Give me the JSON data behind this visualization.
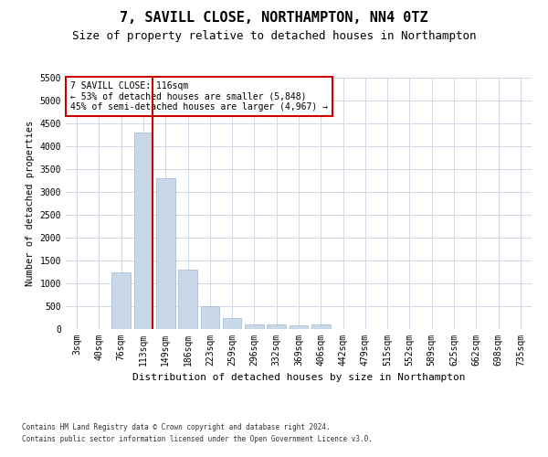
{
  "title1": "7, SAVILL CLOSE, NORTHAMPTON, NN4 0TZ",
  "title2": "Size of property relative to detached houses in Northampton",
  "xlabel": "Distribution of detached houses by size in Northampton",
  "ylabel": "Number of detached properties",
  "footnote1": "Contains HM Land Registry data © Crown copyright and database right 2024.",
  "footnote2": "Contains public sector information licensed under the Open Government Licence v3.0.",
  "categories": [
    "3sqm",
    "40sqm",
    "76sqm",
    "113sqm",
    "149sqm",
    "186sqm",
    "223sqm",
    "259sqm",
    "296sqm",
    "332sqm",
    "369sqm",
    "406sqm",
    "442sqm",
    "479sqm",
    "515sqm",
    "552sqm",
    "589sqm",
    "625sqm",
    "662sqm",
    "698sqm",
    "735sqm"
  ],
  "values": [
    0,
    0,
    1250,
    4300,
    3300,
    1300,
    500,
    250,
    100,
    100,
    75,
    100,
    0,
    0,
    0,
    0,
    0,
    0,
    0,
    0,
    0
  ],
  "bar_color": "#c8d8e8",
  "bar_edge_color": "#a0b8d0",
  "red_line_x": 3.42,
  "annotation_text": "7 SAVILL CLOSE: 116sqm\n← 53% of detached houses are smaller (5,848)\n45% of semi-detached houses are larger (4,967) →",
  "annotation_box_color": "#ffffff",
  "annotation_box_edge_color": "#cc0000",
  "red_line_color": "#cc0000",
  "ylim": [
    0,
    5500
  ],
  "yticks": [
    0,
    500,
    1000,
    1500,
    2000,
    2500,
    3000,
    3500,
    4000,
    4500,
    5000,
    5500
  ],
  "bg_color": "#ffffff",
  "grid_color": "#d0d8e8",
  "title_fontsize": 11,
  "subtitle_fontsize": 9,
  "tick_fontsize": 7,
  "ylabel_fontsize": 7.5,
  "xlabel_fontsize": 8,
  "annot_fontsize": 7,
  "footnote_fontsize": 5.5
}
